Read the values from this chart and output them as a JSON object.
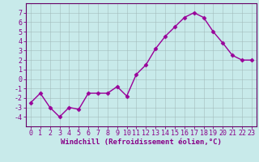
{
  "x": [
    0,
    1,
    2,
    3,
    4,
    5,
    6,
    7,
    8,
    9,
    10,
    11,
    12,
    13,
    14,
    15,
    16,
    17,
    18,
    19,
    20,
    21,
    22,
    23
  ],
  "y": [
    -2.5,
    -1.5,
    -3.0,
    -4.0,
    -3.0,
    -3.2,
    -1.5,
    -1.5,
    -1.5,
    -0.8,
    -1.8,
    0.5,
    1.5,
    3.2,
    4.5,
    5.5,
    6.5,
    7.0,
    6.5,
    5.0,
    3.8,
    2.5,
    2.0,
    2.0
  ],
  "line_color": "#990099",
  "marker": "D",
  "marker_size": 2.5,
  "linewidth": 1.0,
  "bg_color": "#c8eaea",
  "grid_color": "#a0b8b8",
  "xlabel": "Windchill (Refroidissement éolien,°C)",
  "ylabel": "",
  "title": "",
  "xlim": [
    -0.5,
    23.5
  ],
  "ylim": [
    -5,
    8
  ],
  "yticks": [
    -4,
    -3,
    -2,
    -1,
    0,
    1,
    2,
    3,
    4,
    5,
    6,
    7
  ],
  "xticks": [
    0,
    1,
    2,
    3,
    4,
    5,
    6,
    7,
    8,
    9,
    10,
    11,
    12,
    13,
    14,
    15,
    16,
    17,
    18,
    19,
    20,
    21,
    22,
    23
  ],
  "xlabel_fontsize": 6.5,
  "tick_fontsize": 6.0,
  "tick_color": "#880088",
  "axis_color": "#880088",
  "spine_color": "#660066"
}
